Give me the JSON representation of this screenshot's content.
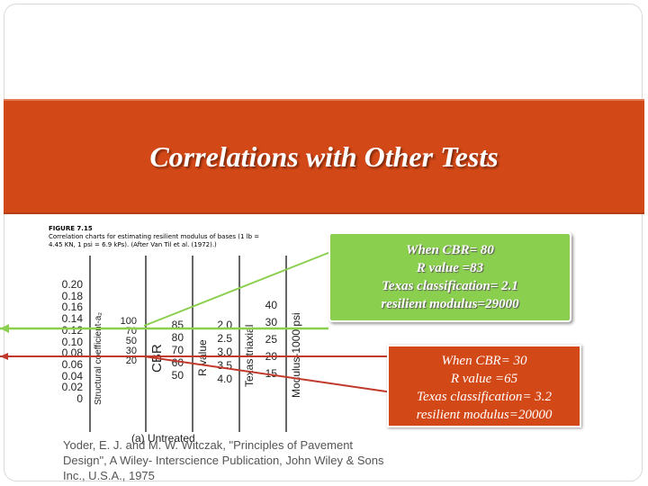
{
  "slide": {
    "title": "Correlations with Other Tests",
    "colors": {
      "title_band": "#d34817",
      "green_box": "#8bcf4f",
      "orange_box": "#d34817",
      "green_line": "#8bcf4f",
      "red_line": "#c0392b"
    }
  },
  "figure": {
    "label": "FIGURE 7.15",
    "caption": "Correlation charts for estimating resilient modulus of bases (1 lb = 4.45 KN, 1 psi = 6.9 kPs). (After Van Til et al. (1972).)",
    "structural_coefficient_label": "Structural coefficient-a₂",
    "structural_ticks": [
      "0.20",
      "0.18",
      "0.16",
      "0.14",
      "0.12",
      "0.10",
      "0.08",
      "0.06",
      "0.04",
      "0.02",
      "0"
    ],
    "cbr_label": "CBR",
    "cbr_ticks": [
      "100",
      "70",
      "50",
      "30",
      "20"
    ],
    "r_label": "R value",
    "r_ticks": [
      "85",
      "80",
      "70",
      "60",
      "50"
    ],
    "texas_label": "Texas triaxial",
    "texas_ticks": [
      "2.0",
      "2.5",
      "3.0",
      "3.5",
      "4.0"
    ],
    "modulus_label": "Modulus-1000 psi",
    "modulus_ticks": [
      "40",
      "30",
      "25",
      "20",
      "15"
    ],
    "subcaption": "(a) Untreated"
  },
  "reference": "Yoder, E. J. and M. W. Witczak, \"Principles of Pavement Design\", A Wiley- Interscience Publication, John Wiley & Sons Inc., U.S.A., 1975",
  "callout_green": {
    "line1": "When CBR= 80",
    "line2": "R value =83",
    "line3": "Texas classification= 2.1",
    "line4": "resilient modulus=29000"
  },
  "callout_orange": {
    "line1": "When CBR= 30",
    "line2": "R value =65",
    "line3": "Texas classification= 3.2",
    "line4": "resilient modulus=20000"
  }
}
